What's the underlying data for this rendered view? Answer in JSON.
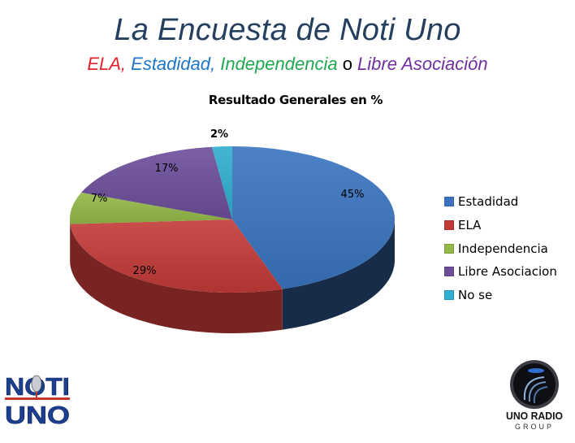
{
  "slide": {
    "title": "La Encuesta de Noti Uno",
    "subtitle": {
      "parts": [
        {
          "text": "ELA,",
          "color": "#e3232b"
        },
        {
          "text": " Estadidad,",
          "color": "#1f77c9"
        },
        {
          "text": " Independencia",
          "color": "#1fa84f"
        },
        {
          "text": " o ",
          "color": "#000000"
        },
        {
          "text": "Libre Asociación",
          "color": "#7030a0"
        }
      ]
    },
    "logos": {
      "left": {
        "line1": "NOTI",
        "line2": "UNO"
      },
      "right": {
        "line1": "UNO RADIO",
        "line2": "GROUP"
      }
    }
  },
  "chart_data": {
    "type": "pie",
    "title": "Resultado Generales en %",
    "style": "3d",
    "categories": [
      "Estadidad",
      "ELA",
      "Independencia",
      "Libre Asociacion",
      "No se"
    ],
    "values": [
      45,
      29,
      7,
      17,
      2
    ],
    "labels": [
      "45%",
      "29%",
      "7%",
      "17%",
      "2%"
    ],
    "colors": [
      "#3a74c0",
      "#c23a38",
      "#93b847",
      "#6c4e9a",
      "#2eaed0"
    ],
    "legend_position": "right",
    "unit": "%"
  }
}
